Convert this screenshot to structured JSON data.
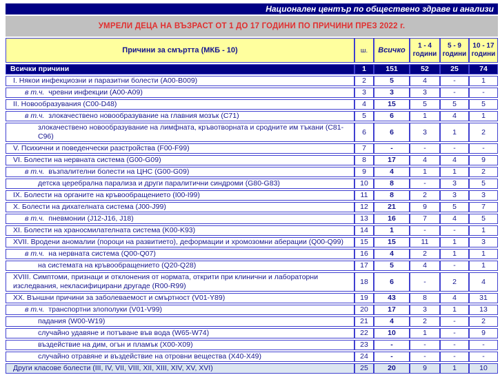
{
  "page": {
    "org_header": "Национален център по обществено здраве и анализи",
    "title": "УМРЕЛИ ДЕЦА НА ВЪЗРАСТ ОТ 1 ДО 17 ГОДИНИ ПО ПРИЧИНИ ПРЕЗ 2022 г."
  },
  "colors": {
    "navy": "#000084",
    "border_blue": "#3f3fd0",
    "header_yellow": "#ffff9e",
    "title_gray": "#c0c0c0",
    "title_red": "#e03030",
    "row_text_navy": "#16168f",
    "other_row_bg": "#dce6f1"
  },
  "table": {
    "columns": {
      "cause": "Причини за смъртта (МКБ - 10)",
      "code": "ш.",
      "total": "Всичко",
      "age_groups": [
        {
          "range": "1 - 4",
          "unit": "години"
        },
        {
          "range": "5 - 9",
          "unit": "години"
        },
        {
          "range": "10 - 17",
          "unit": "години"
        }
      ]
    },
    "rows": [
      {
        "label": "Всички причини",
        "indent": 0,
        "variant": "total",
        "code": "1",
        "total": "151",
        "a1_4": "52",
        "a5_9": "25",
        "a10_17": "74"
      },
      {
        "label": "I. Някои инфекциозни и паразитни болести (A00-B009)",
        "indent": 0,
        "code": "2",
        "total": "5",
        "a1_4": "4",
        "a5_9": "-",
        "a10_17": "1"
      },
      {
        "prefix": "в т.ч.",
        "label": "чревни инфекции (A00-A09)",
        "indent": 1,
        "code": "3",
        "total": "3",
        "a1_4": "3",
        "a5_9": "-",
        "a10_17": "-"
      },
      {
        "label": "II. Новообразувания (C00-D48)",
        "indent": 0,
        "code": "4",
        "total": "15",
        "a1_4": "5",
        "a5_9": "5",
        "a10_17": "5"
      },
      {
        "prefix": "в т.ч.",
        "label": "злокачествено новообразувание на главния мозък (C71)",
        "indent": 1,
        "code": "5",
        "total": "6",
        "a1_4": "1",
        "a5_9": "4",
        "a10_17": "1"
      },
      {
        "label": "злокачествено новообразувание на лимфната, кръвотворната и сродните им тъкани (C81-C96)",
        "indent": 2,
        "code": "6",
        "total": "6",
        "a1_4": "3",
        "a5_9": "1",
        "a10_17": "2"
      },
      {
        "label": "V. Психични и поведенчески разстройства (F00-F99)",
        "indent": 0,
        "code": "7",
        "total": "-",
        "a1_4": "-",
        "a5_9": "-",
        "a10_17": "-"
      },
      {
        "label": "VI. Болести на нервната система (G00-G09)",
        "indent": 0,
        "code": "8",
        "total": "17",
        "a1_4": "4",
        "a5_9": "4",
        "a10_17": "9"
      },
      {
        "prefix": "в т.ч.",
        "label": "възпалителни болести на ЦНС (G00-G09)",
        "indent": 1,
        "code": "9",
        "total": "4",
        "a1_4": "1",
        "a5_9": "1",
        "a10_17": "2"
      },
      {
        "label": "детска церебрална парализа и други паралитични синдроми (G80-G83)",
        "indent": 2,
        "code": "10",
        "total": "8",
        "a1_4": "-",
        "a5_9": "3",
        "a10_17": "5"
      },
      {
        "label": "IX. Болести на органите на кръвообращението (I00-I99)",
        "indent": 0,
        "code": "11",
        "total": "8",
        "a1_4": "2",
        "a5_9": "3",
        "a10_17": "3"
      },
      {
        "label": "X. Болести на дихателната система (J00-J99)",
        "indent": 0,
        "code": "12",
        "total": "21",
        "a1_4": "9",
        "a5_9": "5",
        "a10_17": "7"
      },
      {
        "prefix": "в т.ч.",
        "label": "пневмонии (J12-J16, J18)",
        "indent": 1,
        "code": "13",
        "total": "16",
        "a1_4": "7",
        "a5_9": "4",
        "a10_17": "5"
      },
      {
        "label": "XI. Болести на храносмилателната система (K00-K93)",
        "indent": 0,
        "code": "14",
        "total": "1",
        "a1_4": "-",
        "a5_9": "-",
        "a10_17": "1"
      },
      {
        "label": "XVII. Вродени аномалии (пороци на развитието), деформации и хромозомни аберации (Q00-Q99)",
        "indent": 0,
        "code": "15",
        "total": "15",
        "a1_4": "11",
        "a5_9": "1",
        "a10_17": "3"
      },
      {
        "prefix": "в т.ч.",
        "label": "на нервната система (Q00-Q07)",
        "indent": 1,
        "code": "16",
        "total": "4",
        "a1_4": "2",
        "a5_9": "1",
        "a10_17": "1"
      },
      {
        "label": "на системата на кръвообращението (Q20-Q28)",
        "indent": 2,
        "code": "17",
        "total": "5",
        "a1_4": "4",
        "a5_9": "-",
        "a10_17": "1"
      },
      {
        "label": "XVIII. Симптоми, признаци и отклонения от нормата, открити при клинични и лабораторни изследвания, некласифицирани другаде (R00-R99)",
        "indent": 0,
        "code": "18",
        "total": "6",
        "a1_4": "-",
        "a5_9": "2",
        "a10_17": "4"
      },
      {
        "label": "XX. Външни причини за заболеваемост и смъртност (V01-Y89)",
        "indent": 0,
        "code": "19",
        "total": "43",
        "a1_4": "8",
        "a5_9": "4",
        "a10_17": "31"
      },
      {
        "prefix": "в т.ч.",
        "label": "транспортни злополуки (V01-V99)",
        "indent": 1,
        "code": "20",
        "total": "17",
        "a1_4": "3",
        "a5_9": "1",
        "a10_17": "13"
      },
      {
        "label": "падания (W00-W19)",
        "indent": 2,
        "code": "21",
        "total": "4",
        "a1_4": "2",
        "a5_9": "-",
        "a10_17": "2"
      },
      {
        "label": "случайно удавяне и потъване във вода (W65-W74)",
        "indent": 2,
        "code": "22",
        "total": "10",
        "a1_4": "1",
        "a5_9": "-",
        "a10_17": "9"
      },
      {
        "label": "въздействие на дим, огън и пламък (X00-X09)",
        "indent": 2,
        "code": "23",
        "total": "-",
        "a1_4": "-",
        "a5_9": "-",
        "a10_17": "-"
      },
      {
        "label": "случайно отравяне и въздействие на отровни вещества (X40-X49)",
        "indent": 2,
        "code": "24",
        "total": "-",
        "a1_4": "-",
        "a5_9": "-",
        "a10_17": "-"
      },
      {
        "label": "Други класове болести (III, IV, VII, VIII, XII, XIII, XIV, XV, XVI)",
        "indent": 0,
        "variant": "other",
        "code": "25",
        "total": "20",
        "a1_4": "9",
        "a5_9": "1",
        "a10_17": "10"
      }
    ]
  }
}
